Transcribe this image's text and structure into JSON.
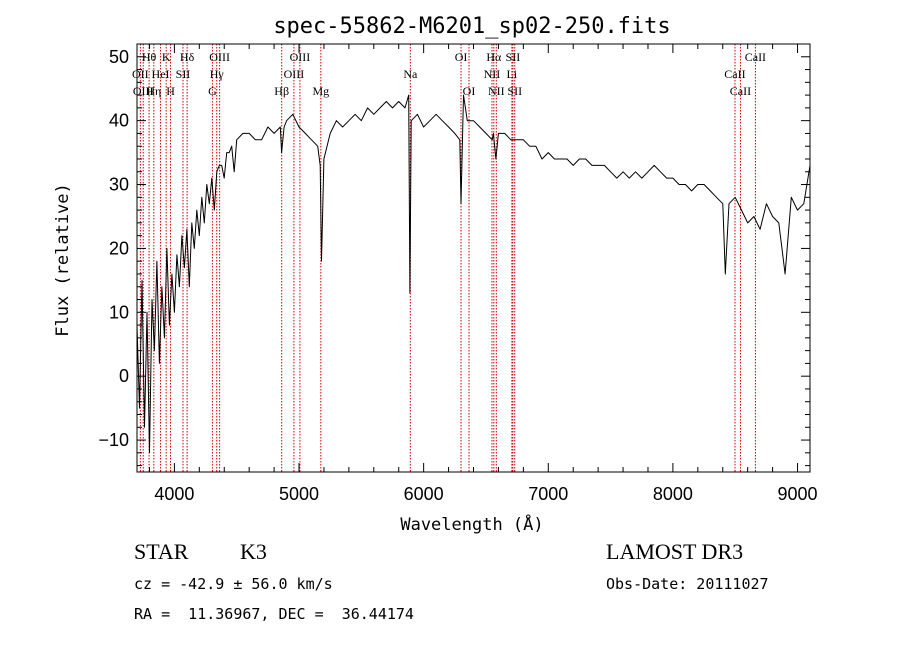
{
  "chart_data": {
    "type": "line",
    "title": "spec-55862-M6201_sp02-250.fits",
    "xlabel": "Wavelength (Å)",
    "ylabel": "Flux (relative)",
    "xlim": [
      3700,
      9100
    ],
    "ylim": [
      -15,
      52
    ],
    "xticks": [
      4000,
      5000,
      6000,
      7000,
      8000,
      9000
    ],
    "yticks": [
      -10,
      0,
      10,
      20,
      30,
      40,
      50
    ],
    "series": [
      {
        "name": "flux",
        "x": [
          3700,
          3720,
          3740,
          3760,
          3780,
          3800,
          3820,
          3840,
          3860,
          3880,
          3900,
          3920,
          3940,
          3960,
          3980,
          4000,
          4020,
          4040,
          4060,
          4080,
          4100,
          4120,
          4140,
          4160,
          4180,
          4200,
          4220,
          4240,
          4260,
          4280,
          4300,
          4320,
          4340,
          4360,
          4380,
          4400,
          4420,
          4440,
          4460,
          4480,
          4500,
          4550,
          4600,
          4650,
          4700,
          4750,
          4800,
          4850,
          4860,
          4880,
          4900,
          4950,
          5000,
          5050,
          5100,
          5150,
          5170,
          5180,
          5200,
          5250,
          5300,
          5350,
          5400,
          5450,
          5500,
          5550,
          5600,
          5650,
          5700,
          5750,
          5800,
          5850,
          5880,
          5890,
          5900,
          5950,
          6000,
          6050,
          6100,
          6150,
          6200,
          6250,
          6290,
          6300,
          6320,
          6350,
          6400,
          6450,
          6500,
          6550,
          6560,
          6580,
          6600,
          6650,
          6700,
          6750,
          6800,
          6850,
          6900,
          6950,
          7000,
          7050,
          7100,
          7150,
          7200,
          7250,
          7300,
          7350,
          7400,
          7450,
          7500,
          7550,
          7600,
          7650,
          7700,
          7750,
          7800,
          7850,
          7900,
          7950,
          8000,
          8050,
          8100,
          8150,
          8200,
          8250,
          8300,
          8350,
          8400,
          8420,
          8450,
          8500,
          8550,
          8600,
          8650,
          8700,
          8750,
          8800,
          8850,
          8900,
          8950,
          9000,
          9050,
          9100
        ],
        "values": [
          8,
          -5,
          15,
          -8,
          10,
          -12,
          12,
          4,
          18,
          2,
          14,
          6,
          20,
          8,
          16,
          10,
          19,
          14,
          22,
          17,
          23,
          14,
          24,
          20,
          26,
          22,
          28,
          24,
          30,
          27,
          31,
          26,
          32,
          33,
          33,
          31,
          35,
          35,
          36,
          32,
          37,
          38,
          38,
          37,
          37,
          39,
          38,
          39,
          35,
          39,
          40,
          41,
          39,
          38,
          37,
          36,
          33,
          18,
          34,
          38,
          40,
          39,
          40,
          41,
          40,
          42,
          41,
          42,
          43,
          42,
          43,
          42,
          44,
          13,
          40,
          41,
          39,
          40,
          41,
          40,
          39,
          38,
          37,
          27,
          44,
          40,
          40,
          39,
          38,
          37,
          38,
          34,
          38,
          38,
          37,
          37,
          37,
          36,
          36,
          34,
          35,
          34,
          34,
          34,
          33,
          34,
          34,
          33,
          33,
          33,
          32,
          31,
          32,
          31,
          32,
          31,
          32,
          33,
          32,
          31,
          31,
          30,
          30,
          29,
          30,
          30,
          29,
          28,
          27,
          16,
          27,
          28,
          26,
          24,
          25,
          23,
          27,
          25,
          24,
          16,
          28,
          26,
          27,
          33
        ]
      }
    ],
    "lines": [
      {
        "label": "Hθ",
        "x": 3797,
        "row": 1
      },
      {
        "label": "OII",
        "x": 3727,
        "row": 2
      },
      {
        "label": "OIII",
        "x": 3750,
        "row": 3
      },
      {
        "label": "K",
        "x": 3934,
        "row": 1
      },
      {
        "label": "HeI",
        "x": 3889,
        "row": 2
      },
      {
        "label": "Hη",
        "x": 3835,
        "row": 3
      },
      {
        "label": "SII",
        "x": 4069,
        "row": 2
      },
      {
        "label": "H",
        "x": 3969,
        "row": 3
      },
      {
        "label": "Hδ",
        "x": 4102,
        "row": 1
      },
      {
        "label": "OIII",
        "x": 4363,
        "row": 1
      },
      {
        "label": "Hγ",
        "x": 4340,
        "row": 2
      },
      {
        "label": "G",
        "x": 4305,
        "row": 3
      },
      {
        "label": "OIII",
        "x": 5007,
        "row": 1
      },
      {
        "label": "OIII",
        "x": 4959,
        "row": 2
      },
      {
        "label": "Hβ",
        "x": 4861,
        "row": 3
      },
      {
        "label": "Mg",
        "x": 5175,
        "row": 3
      },
      {
        "label": "Na",
        "x": 5893,
        "row": 2
      },
      {
        "label": "OI",
        "x": 6300,
        "row": 1
      },
      {
        "label": "OI",
        "x": 6364,
        "row": 3
      },
      {
        "label": "Hα",
        "x": 6563,
        "row": 1
      },
      {
        "label": "SII",
        "x": 6716,
        "row": 1
      },
      {
        "label": "NII",
        "x": 6548,
        "row": 2
      },
      {
        "label": "Li",
        "x": 6708,
        "row": 2
      },
      {
        "label": "NII",
        "x": 6583,
        "row": 3
      },
      {
        "label": "SII",
        "x": 6731,
        "row": 3
      },
      {
        "label": "CaII",
        "x": 8662,
        "row": 1
      },
      {
        "label": "CaII",
        "x": 8498,
        "row": 2
      },
      {
        "label": "CaII",
        "x": 8542,
        "row": 3
      }
    ]
  },
  "info": {
    "object_type": "STAR",
    "subclass": "K3",
    "survey": "LAMOST DR3",
    "cz": "cz = -42.9 ± 56.0 km/s",
    "obs_date": "Obs-Date: 20111027",
    "coords": "RA =  11.36967, DEC =  36.44174"
  },
  "colors": {
    "spectrum": "#000000",
    "marker": "#cc0000",
    "axis": "#000000"
  }
}
